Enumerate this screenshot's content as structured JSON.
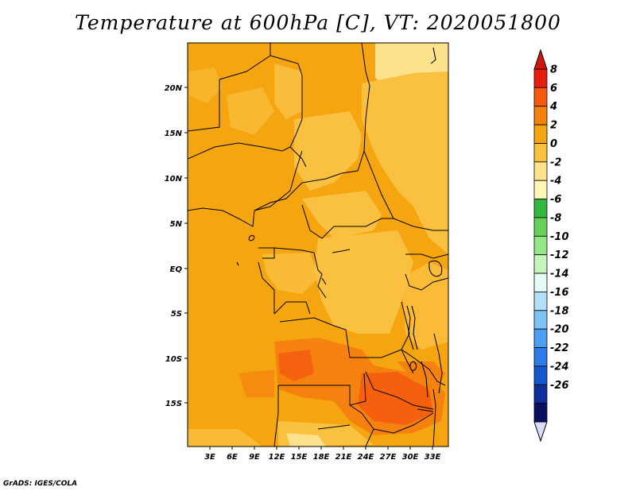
{
  "title": "Temperature at 600hPa [C], VT: 2020051800",
  "credit": "GrADS: IGES/COLA",
  "map": {
    "lat_ticks": [
      "20N",
      "15N",
      "10N",
      "5N",
      "EQ",
      "5S",
      "10S",
      "15S"
    ],
    "lon_ticks": [
      "3E",
      "6E",
      "9E",
      "12E",
      "15E",
      "18E",
      "21E",
      "24E",
      "27E",
      "30E",
      "33E"
    ]
  },
  "colorbar": {
    "labels": [
      "8",
      "6",
      "4",
      "2",
      "0",
      "-2",
      "-4",
      "-6",
      "-8",
      "-10",
      "-12",
      "-14",
      "-16",
      "-18",
      "-20",
      "-22",
      "-24",
      "-26"
    ],
    "colors": [
      "#e51e0e",
      "#f55a0f",
      "#f5820f",
      "#f5a50f",
      "#fac040",
      "#fde28c",
      "#fdf6b4",
      "#35b83f",
      "#66d15a",
      "#95e686",
      "#c5f4bc",
      "#e6fbf5",
      "#b5e0f9",
      "#7ec2f6",
      "#4a9ff0",
      "#2a7ce6",
      "#1557cc",
      "#0d2e9b",
      "#08105f"
    ],
    "over_color": "#d1180c",
    "under_color": "#dadafa"
  }
}
